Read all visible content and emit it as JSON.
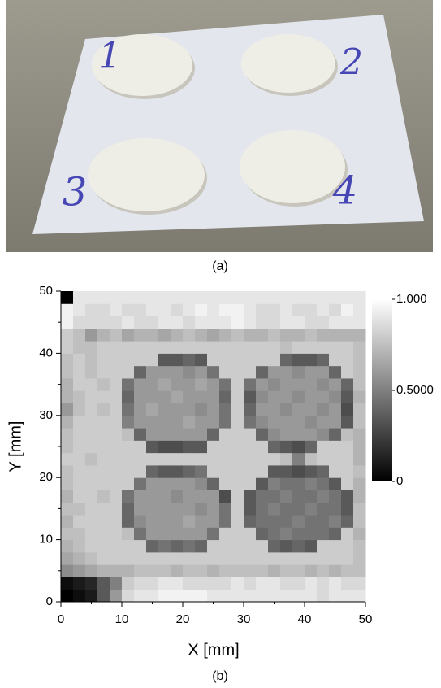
{
  "photo": {
    "labels": [
      "1",
      "2",
      "3",
      "4"
    ],
    "caption": "(a)"
  },
  "chart_data": {
    "type": "heatmap",
    "caption": "(b)",
    "xlabel": "X [mm]",
    "ylabel": "Y [mm]",
    "xlim": [
      0,
      50
    ],
    "ylim": [
      0,
      50
    ],
    "xticks": [
      0,
      10,
      20,
      30,
      40,
      50
    ],
    "yticks": [
      0,
      10,
      20,
      30,
      40,
      50
    ],
    "xminorticks": [
      5,
      15,
      25,
      35,
      45
    ],
    "yminorticks": [
      5,
      15,
      25,
      35,
      45
    ],
    "zlim": [
      0,
      1
    ],
    "colorbar_ticks": [
      {
        "value": 1,
        "label": "1.000"
      },
      {
        "value": 0.5,
        "label": "0.5000"
      },
      0
    ],
    "z": [
      [
        0.0,
        0.05,
        0.1,
        0.35,
        0.6,
        0.85,
        0.9,
        0.9,
        0.95,
        0.95,
        0.95,
        0.95,
        0.9,
        0.9,
        0.9,
        0.9,
        0.9,
        0.9,
        0.9,
        0.9,
        0.9,
        0.85,
        0.9,
        0.9,
        0.9
      ],
      [
        0.05,
        0.1,
        0.15,
        0.35,
        0.5,
        0.8,
        0.85,
        0.85,
        0.9,
        0.9,
        0.85,
        0.85,
        0.85,
        0.85,
        0.9,
        0.85,
        0.9,
        0.9,
        0.85,
        0.85,
        0.9,
        0.85,
        0.9,
        0.85,
        0.85
      ],
      [
        0.55,
        0.6,
        0.65,
        0.7,
        0.7,
        0.7,
        0.75,
        0.75,
        0.75,
        0.7,
        0.75,
        0.75,
        0.7,
        0.75,
        0.75,
        0.75,
        0.75,
        0.7,
        0.75,
        0.75,
        0.7,
        0.75,
        0.7,
        0.75,
        0.75
      ],
      [
        0.65,
        0.7,
        0.75,
        0.8,
        0.8,
        0.8,
        0.8,
        0.8,
        0.8,
        0.8,
        0.8,
        0.8,
        0.8,
        0.8,
        0.8,
        0.8,
        0.8,
        0.8,
        0.8,
        0.8,
        0.8,
        0.8,
        0.8,
        0.8,
        0.75
      ],
      [
        0.7,
        0.75,
        0.8,
        0.8,
        0.8,
        0.8,
        0.8,
        0.4,
        0.45,
        0.4,
        0.45,
        0.4,
        0.8,
        0.8,
        0.8,
        0.8,
        0.8,
        0.4,
        0.35,
        0.4,
        0.35,
        0.8,
        0.8,
        0.8,
        0.75
      ],
      [
        0.75,
        0.75,
        0.8,
        0.8,
        0.8,
        0.75,
        0.45,
        0.6,
        0.6,
        0.6,
        0.6,
        0.6,
        0.45,
        0.8,
        0.8,
        0.8,
        0.4,
        0.45,
        0.5,
        0.45,
        0.45,
        0.45,
        0.4,
        0.8,
        0.7
      ],
      [
        0.7,
        0.8,
        0.8,
        0.8,
        0.8,
        0.4,
        0.55,
        0.6,
        0.6,
        0.6,
        0.65,
        0.6,
        0.6,
        0.45,
        0.8,
        0.4,
        0.45,
        0.45,
        0.45,
        0.5,
        0.45,
        0.45,
        0.5,
        0.4,
        0.75
      ],
      [
        0.75,
        0.75,
        0.8,
        0.8,
        0.8,
        0.4,
        0.6,
        0.6,
        0.6,
        0.6,
        0.6,
        0.55,
        0.6,
        0.45,
        0.8,
        0.35,
        0.45,
        0.5,
        0.45,
        0.45,
        0.5,
        0.45,
        0.45,
        0.35,
        0.75
      ],
      [
        0.7,
        0.8,
        0.8,
        0.75,
        0.8,
        0.45,
        0.6,
        0.6,
        0.6,
        0.55,
        0.6,
        0.6,
        0.6,
        0.3,
        0.8,
        0.35,
        0.45,
        0.45,
        0.5,
        0.45,
        0.45,
        0.5,
        0.45,
        0.35,
        0.7
      ],
      [
        0.75,
        0.8,
        0.8,
        0.8,
        0.8,
        0.8,
        0.45,
        0.6,
        0.6,
        0.6,
        0.6,
        0.55,
        0.4,
        0.8,
        0.8,
        0.8,
        0.35,
        0.5,
        0.45,
        0.45,
        0.5,
        0.45,
        0.35,
        0.8,
        0.7
      ],
      [
        0.75,
        0.8,
        0.8,
        0.8,
        0.8,
        0.8,
        0.8,
        0.4,
        0.35,
        0.35,
        0.4,
        0.45,
        0.8,
        0.8,
        0.8,
        0.8,
        0.8,
        0.35,
        0.35,
        0.3,
        0.35,
        0.4,
        0.8,
        0.8,
        0.75
      ],
      [
        0.8,
        0.8,
        0.75,
        0.8,
        0.8,
        0.8,
        0.8,
        0.8,
        0.8,
        0.8,
        0.8,
        0.8,
        0.8,
        0.8,
        0.8,
        0.8,
        0.8,
        0.8,
        0.75,
        0.5,
        0.75,
        0.8,
        0.8,
        0.8,
        0.7
      ],
      [
        0.75,
        0.8,
        0.8,
        0.8,
        0.8,
        0.8,
        0.8,
        0.35,
        0.3,
        0.3,
        0.35,
        0.35,
        0.8,
        0.8,
        0.8,
        0.8,
        0.8,
        0.4,
        0.35,
        0.3,
        0.4,
        0.8,
        0.8,
        0.8,
        0.7
      ],
      [
        0.75,
        0.8,
        0.8,
        0.8,
        0.8,
        0.75,
        0.4,
        0.6,
        0.6,
        0.6,
        0.6,
        0.6,
        0.4,
        0.8,
        0.8,
        0.8,
        0.4,
        0.55,
        0.6,
        0.6,
        0.6,
        0.55,
        0.4,
        0.75,
        0.7
      ],
      [
        0.7,
        0.8,
        0.8,
        0.8,
        0.8,
        0.5,
        0.6,
        0.6,
        0.6,
        0.6,
        0.65,
        0.6,
        0.6,
        0.45,
        0.8,
        0.45,
        0.55,
        0.6,
        0.6,
        0.6,
        0.55,
        0.6,
        0.6,
        0.35,
        0.75
      ],
      [
        0.6,
        0.75,
        0.8,
        0.75,
        0.8,
        0.45,
        0.6,
        0.65,
        0.6,
        0.6,
        0.6,
        0.55,
        0.6,
        0.45,
        0.8,
        0.4,
        0.6,
        0.6,
        0.55,
        0.6,
        0.6,
        0.55,
        0.6,
        0.3,
        0.75
      ],
      [
        0.7,
        0.75,
        0.8,
        0.8,
        0.8,
        0.4,
        0.6,
        0.6,
        0.6,
        0.65,
        0.6,
        0.6,
        0.6,
        0.4,
        0.8,
        0.35,
        0.55,
        0.6,
        0.6,
        0.55,
        0.6,
        0.6,
        0.55,
        0.35,
        0.7
      ],
      [
        0.7,
        0.8,
        0.8,
        0.75,
        0.8,
        0.45,
        0.6,
        0.6,
        0.65,
        0.6,
        0.6,
        0.65,
        0.6,
        0.45,
        0.8,
        0.45,
        0.6,
        0.55,
        0.6,
        0.6,
        0.6,
        0.55,
        0.6,
        0.4,
        0.75
      ],
      [
        0.75,
        0.8,
        0.75,
        0.8,
        0.8,
        0.8,
        0.4,
        0.6,
        0.6,
        0.6,
        0.55,
        0.6,
        0.45,
        0.8,
        0.8,
        0.8,
        0.4,
        0.6,
        0.6,
        0.55,
        0.6,
        0.6,
        0.4,
        0.8,
        0.75
      ],
      [
        0.75,
        0.8,
        0.75,
        0.8,
        0.8,
        0.8,
        0.8,
        0.8,
        0.35,
        0.35,
        0.4,
        0.35,
        0.8,
        0.8,
        0.8,
        0.8,
        0.8,
        0.8,
        0.4,
        0.35,
        0.35,
        0.4,
        0.8,
        0.8,
        0.75
      ],
      [
        0.8,
        0.75,
        0.75,
        0.8,
        0.8,
        0.8,
        0.8,
        0.8,
        0.8,
        0.8,
        0.8,
        0.8,
        0.8,
        0.8,
        0.8,
        0.8,
        0.8,
        0.8,
        0.75,
        0.8,
        0.8,
        0.8,
        0.8,
        0.8,
        0.75
      ],
      [
        0.8,
        0.75,
        0.6,
        0.7,
        0.75,
        0.65,
        0.7,
        0.7,
        0.65,
        0.7,
        0.75,
        0.7,
        0.65,
        0.7,
        0.75,
        0.7,
        0.7,
        0.75,
        0.7,
        0.7,
        0.75,
        0.7,
        0.7,
        0.7,
        0.7
      ],
      [
        0.95,
        0.85,
        0.85,
        0.85,
        0.85,
        0.9,
        0.85,
        0.85,
        0.9,
        0.9,
        0.85,
        0.9,
        0.9,
        0.9,
        0.95,
        0.9,
        0.85,
        0.85,
        0.9,
        0.9,
        0.85,
        0.85,
        0.9,
        0.9,
        0.9
      ],
      [
        0.95,
        0.9,
        0.85,
        0.85,
        0.9,
        0.85,
        0.85,
        0.9,
        0.9,
        0.85,
        0.9,
        0.95,
        0.9,
        0.95,
        0.95,
        0.9,
        0.85,
        0.85,
        0.9,
        0.85,
        0.85,
        0.9,
        0.85,
        0.95,
        0.9
      ],
      [
        0.0,
        0.9,
        0.9,
        0.9,
        0.9,
        0.9,
        0.9,
        0.9,
        0.9,
        0.9,
        0.9,
        0.9,
        0.9,
        0.9,
        0.9,
        0.9,
        0.9,
        0.9,
        0.9,
        0.9,
        0.9,
        0.9,
        0.9,
        0.9,
        0.9
      ]
    ]
  }
}
